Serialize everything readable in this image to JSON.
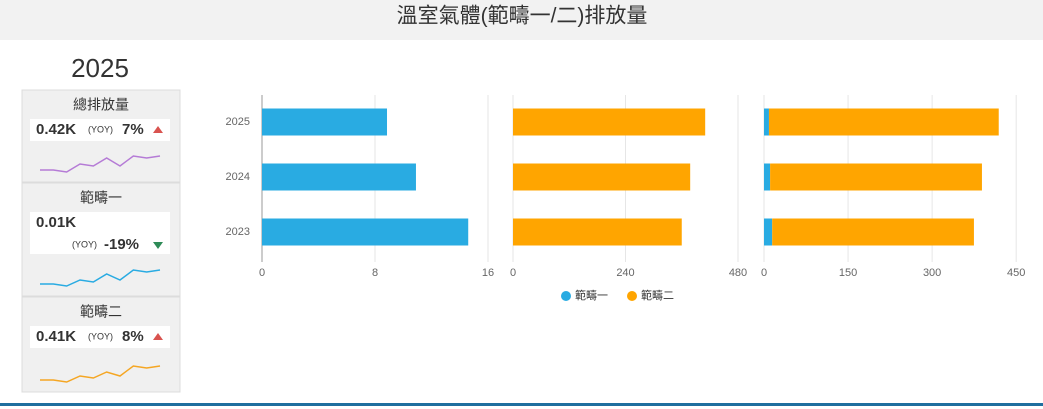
{
  "title": "溫室氣體(範疇一/二)排放量",
  "year": "2025",
  "kpis": [
    {
      "label": "總排放量",
      "value": "0.42K",
      "yoy": "(YOY)",
      "change": "7%",
      "trend": "up",
      "color": "#b57bd6",
      "spark": [
        3,
        3,
        2,
        6,
        5,
        9,
        5,
        10,
        9,
        10
      ]
    },
    {
      "label": "範疇一",
      "value": "0.01K",
      "yoy": "(YOY)",
      "change": "-19%",
      "trend": "down",
      "color": "#29abe2",
      "spark": [
        4,
        4,
        3,
        6,
        5,
        9,
        6,
        11,
        10,
        11
      ]
    },
    {
      "label": "範疇二",
      "value": "0.41K",
      "yoy": "(YOY)",
      "change": "8%",
      "trend": "up",
      "color": "#f5a623",
      "spark": [
        3,
        3,
        2,
        5,
        4,
        7,
        5,
        10,
        9,
        10
      ]
    }
  ],
  "chart_data": [
    {
      "type": "bar",
      "categories": [
        "2025",
        "2024",
        "2023"
      ],
      "series": [
        {
          "name": "範疇一",
          "color": "#29abe2",
          "values": [
            8.85,
            10.9,
            14.6
          ]
        }
      ],
      "xlim": [
        0,
        16
      ],
      "xticks": [
        0,
        8,
        16
      ],
      "grid": true
    },
    {
      "type": "bar",
      "categories": [
        "2025",
        "2024",
        "2023"
      ],
      "series": [
        {
          "name": "範疇二",
          "color": "#ffa500",
          "values": [
            410,
            378,
            360
          ]
        }
      ],
      "xlim": [
        0,
        480
      ],
      "xticks": [
        0,
        240,
        480
      ],
      "grid": true
    },
    {
      "type": "stacked_bar",
      "categories": [
        "2025",
        "2024",
        "2023"
      ],
      "series": [
        {
          "name": "範疇一",
          "color": "#29abe2",
          "values": [
            8.85,
            10.9,
            14.6
          ]
        },
        {
          "name": "範疇二",
          "color": "#ffa500",
          "values": [
            410,
            378,
            360
          ]
        }
      ],
      "xlim": [
        0,
        480
      ],
      "xticks": [
        0,
        150,
        300,
        450
      ],
      "grid": true,
      "legend": "bottom"
    }
  ]
}
